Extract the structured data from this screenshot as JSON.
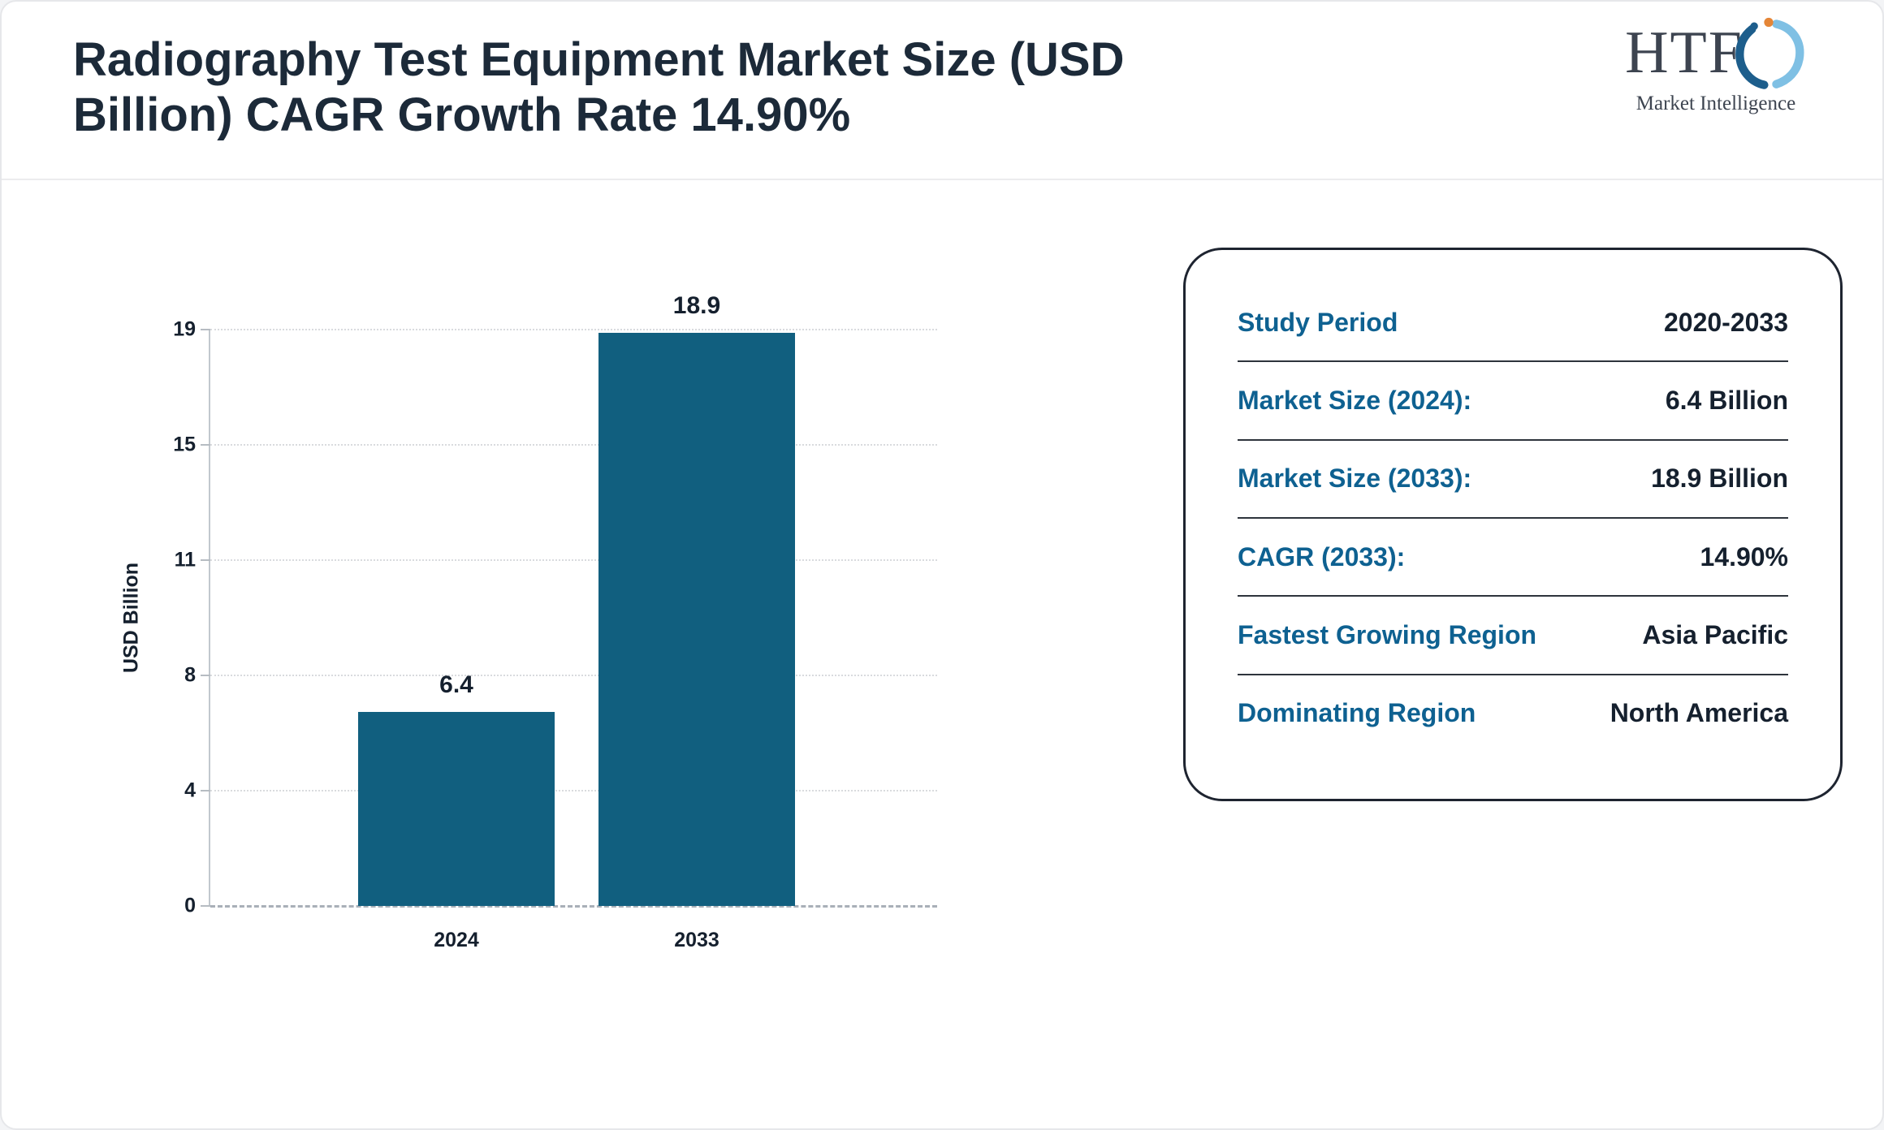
{
  "header": {
    "title": "Radiography Test Equipment Market Size (USD Billion) CAGR Growth Rate 14.90%"
  },
  "logo": {
    "text": "HTF",
    "subtext": "Market Intelligence"
  },
  "chart_data": {
    "type": "bar",
    "title": "Radiography Test Equipment Market Size (USD Billion) CAGR Growth Rate 14.90%",
    "categories": [
      "2024",
      "2033"
    ],
    "values": [
      6.4,
      18.9
    ],
    "bar_labels": [
      "6.4",
      "18.9"
    ],
    "xlabel": "",
    "ylabel": "USD Billion",
    "yticks": [
      0,
      4,
      8,
      11,
      15,
      19
    ],
    "ylim": [
      0,
      19
    ],
    "grid": "dotted-horizontal",
    "legend": "none",
    "bar_color": "#115f7f"
  },
  "panel": {
    "rows": [
      {
        "label": "Study Period",
        "value": "2020-2033"
      },
      {
        "label": "Market Size (2024):",
        "value": "6.4 Billion"
      },
      {
        "label": "Market Size (2033):",
        "value": "18.9 Billion"
      },
      {
        "label": "CAGR (2033):",
        "value": "14.90%"
      },
      {
        "label": "Fastest Growing Region",
        "value": "Asia Pacific"
      },
      {
        "label": "Dominating Region",
        "value": "North America"
      }
    ]
  },
  "colors": {
    "bar": "#115f7f",
    "panel_label": "#0e6191",
    "text_dark": "#15202e",
    "title": "#1c2a39"
  }
}
